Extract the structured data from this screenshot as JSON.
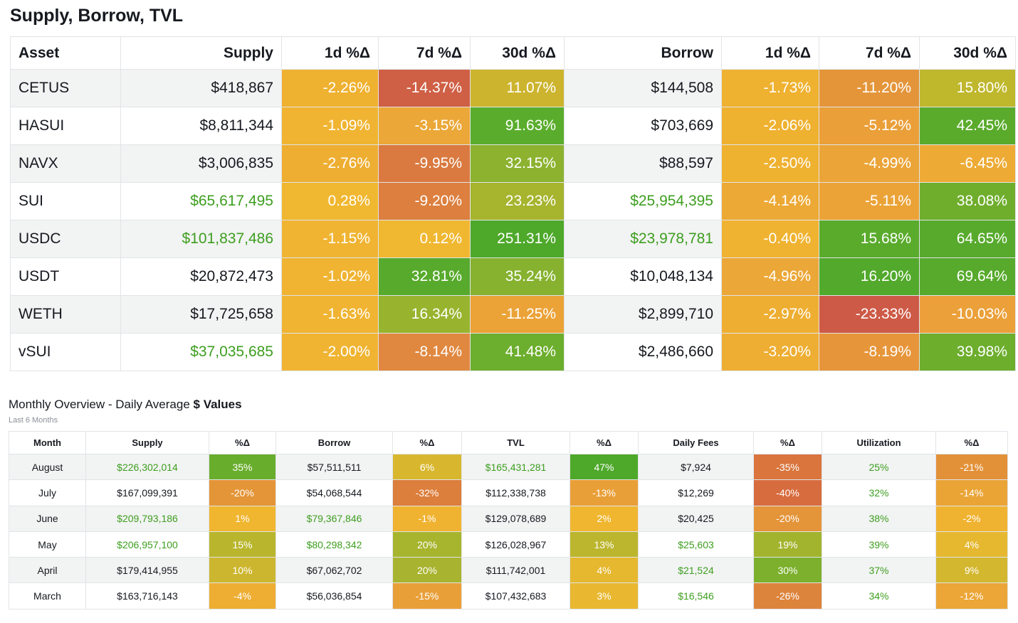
{
  "section1": {
    "title": "Supply, Borrow, TVL",
    "headers": [
      "Asset",
      "Supply",
      "1d %Δ",
      "7d %Δ",
      "30d %Δ",
      "Borrow",
      "1d %Δ",
      "7d %Δ",
      "30d %Δ"
    ],
    "rows": [
      {
        "asset": "CETUS",
        "supply": "$418,867",
        "supply_green": false,
        "s1d": "-2.26%",
        "s7d": "-14.37%",
        "s30d": "11.07%",
        "borrow": "$144,508",
        "borrow_green": false,
        "b1d": "-1.73%",
        "b7d": "-11.20%",
        "b30d": "15.80%",
        "colors": [
          "#efb130",
          "#cf5f45",
          "#cdb42e",
          "#efb130",
          "#e4953a",
          "#bfb72c"
        ]
      },
      {
        "asset": "HASUI",
        "supply": "$8,811,344",
        "supply_green": false,
        "s1d": "-1.09%",
        "s7d": "-3.15%",
        "s30d": "91.63%",
        "borrow": "$703,669",
        "borrow_green": false,
        "b1d": "-2.06%",
        "b7d": "-5.12%",
        "b30d": "42.45%",
        "colors": [
          "#f0b432",
          "#eba737",
          "#5aad2c",
          "#efb130",
          "#ea9f39",
          "#5aab2c"
        ]
      },
      {
        "asset": "NAVX",
        "supply": "$3,006,835",
        "supply_green": false,
        "s1d": "-2.76%",
        "s7d": "-9.95%",
        "s30d": "32.15%",
        "borrow": "$88,597",
        "borrow_green": false,
        "b1d": "-2.50%",
        "b7d": "-4.99%",
        "b30d": "-6.45%",
        "colors": [
          "#eeae32",
          "#da7a40",
          "#8cb22f",
          "#efb130",
          "#eba437",
          "#edab35"
        ]
      },
      {
        "asset": "SUI",
        "supply": "$65,617,495",
        "supply_green": true,
        "s1d": "0.28%",
        "s7d": "-9.20%",
        "s30d": "23.23%",
        "borrow": "$25,954,395",
        "borrow_green": true,
        "b1d": "-4.14%",
        "b7d": "-5.11%",
        "b30d": "38.08%",
        "colors": [
          "#f0b730",
          "#dc7f3f",
          "#a6b42e",
          "#eda935",
          "#eba337",
          "#6fae2d"
        ]
      },
      {
        "asset": "USDC",
        "supply": "$101,837,486",
        "supply_green": true,
        "s1d": "-1.15%",
        "s7d": "0.12%",
        "s30d": "251.31%",
        "borrow": "$23,978,781",
        "borrow_green": true,
        "b1d": "-0.40%",
        "b7d": "15.68%",
        "b30d": "64.65%",
        "colors": [
          "#f0b432",
          "#f0b730",
          "#4ea82a",
          "#f0b331",
          "#5aab2c",
          "#57aa2c"
        ]
      },
      {
        "asset": "USDT",
        "supply": "$20,872,473",
        "supply_green": false,
        "s1d": "-1.02%",
        "s7d": "32.81%",
        "s30d": "35.24%",
        "borrow": "$10,048,134",
        "borrow_green": false,
        "b1d": "-4.96%",
        "b7d": "16.20%",
        "b30d": "69.64%",
        "colors": [
          "#f0b432",
          "#57aa2c",
          "#86b22f",
          "#eba737",
          "#52a92b",
          "#57aa2c"
        ]
      },
      {
        "asset": "WETH",
        "supply": "$17,725,658",
        "supply_green": false,
        "s1d": "-1.63%",
        "s7d": "16.34%",
        "s30d": "-11.25%",
        "borrow": "$2,899,710",
        "borrow_green": false,
        "b1d": "-2.97%",
        "b7d": "-23.33%",
        "b30d": "-10.03%",
        "colors": [
          "#f0b432",
          "#98b42e",
          "#eba237",
          "#eeae32",
          "#cd5a47",
          "#eba039"
        ]
      },
      {
        "asset": "vSUI",
        "supply": "$37,035,685",
        "supply_green": true,
        "s1d": "-2.00%",
        "s7d": "-8.14%",
        "s30d": "41.48%",
        "borrow": "$2,486,660",
        "borrow_green": false,
        "b1d": "-3.20%",
        "b7d": "-8.19%",
        "b30d": "39.98%",
        "colors": [
          "#f0b432",
          "#e08840",
          "#6cae2d",
          "#eeae33",
          "#e7953a",
          "#6dae2d"
        ]
      }
    ]
  },
  "section2": {
    "title_prefix": "Monthly Overview - Daily Average ",
    "title_bold": "$ Values",
    "subtitle": "Last 6 Months",
    "headers": [
      "Month",
      "Supply",
      "%Δ",
      "Borrow",
      "%Δ",
      "TVL",
      "%Δ",
      "Daily Fees",
      "%Δ",
      "Utilization",
      "%Δ"
    ],
    "rows": [
      {
        "month": "August",
        "supply": "$226,302,014",
        "supply_green": true,
        "sp": "35%",
        "borrow": "$57,511,511",
        "borrow_green": false,
        "bp": "6%",
        "tvl": "$165,431,281",
        "tvl_green": true,
        "tp": "47%",
        "fees": "$7,924",
        "fees_green": false,
        "fp": "-35%",
        "util": "25%",
        "up": "-21%",
        "colors": [
          "#69ad2d",
          "#d8b72f",
          "#4ea82a",
          "#d9753d",
          "#e39139"
        ]
      },
      {
        "month": "July",
        "supply": "$167,099,391",
        "supply_green": false,
        "sp": "-20%",
        "borrow": "$54,068,544",
        "borrow_green": false,
        "bp": "-32%",
        "tvl": "$112,338,738",
        "tvl_green": false,
        "tp": "-13%",
        "fees": "$12,269",
        "fees_green": false,
        "fp": "-40%",
        "util": "32%",
        "up": "-14%",
        "colors": [
          "#e49538",
          "#dc7e3c",
          "#e99f37",
          "#d76c3e",
          "#eaa436"
        ]
      },
      {
        "month": "June",
        "supply": "$209,793,186",
        "supply_green": true,
        "sp": "1%",
        "borrow": "$79,367,846",
        "borrow_green": true,
        "bp": "-1%",
        "tvl": "$129,078,689",
        "tvl_green": false,
        "tp": "2%",
        "fees": "$20,425",
        "fees_green": false,
        "fp": "-20%",
        "util": "38%",
        "up": "-2%",
        "colors": [
          "#f0b630",
          "#f0b331",
          "#f0b630",
          "#e49439",
          "#f0b331"
        ]
      },
      {
        "month": "May",
        "supply": "$206,957,100",
        "supply_green": true,
        "sp": "15%",
        "borrow": "$80,298,342",
        "borrow_green": true,
        "bp": "20%",
        "tvl": "$126,028,967",
        "tvl_green": false,
        "tp": "13%",
        "fees": "$25,603",
        "fees_green": true,
        "fp": "19%",
        "util": "39%",
        "up": "4%",
        "colors": [
          "#b9b62e",
          "#a7b52e",
          "#bcb62e",
          "#a2b42e",
          "#e5b830"
        ]
      },
      {
        "month": "April",
        "supply": "$179,414,955",
        "supply_green": false,
        "sp": "10%",
        "borrow": "$67,062,702",
        "borrow_green": false,
        "bp": "20%",
        "tvl": "$111,742,001",
        "tvl_green": false,
        "tp": "4%",
        "fees": "$21,524",
        "fees_green": true,
        "fp": "30%",
        "util": "37%",
        "up": "9%",
        "colors": [
          "#cdb62f",
          "#a8b42f",
          "#e6b830",
          "#7cb02d",
          "#d3b72f"
        ]
      },
      {
        "month": "March",
        "supply": "$163,716,143",
        "supply_green": false,
        "sp": "-4%",
        "borrow": "$56,036,854",
        "borrow_green": false,
        "bp": "-15%",
        "tvl": "$107,432,683",
        "tvl_green": false,
        "tp": "3%",
        "fees": "$16,546",
        "fees_green": true,
        "fp": "-26%",
        "util": "34%",
        "up": "-12%",
        "colors": [
          "#eeae33",
          "#e99f38",
          "#e9b830",
          "#dd843c",
          "#eba637"
        ]
      }
    ]
  },
  "colors": {
    "positive_text": "#3d9e1f",
    "utilization_text": "#3d9e1f",
    "row_stripe": "#f2f3f3",
    "border": "#e1e4e8"
  }
}
